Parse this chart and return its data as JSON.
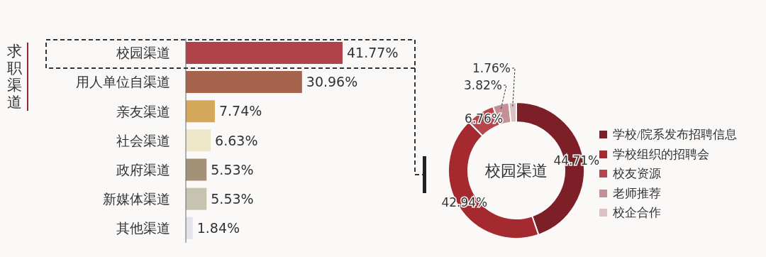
{
  "chart_data": [
    {
      "type": "bar",
      "orientation": "horizontal",
      "ylabel": "求职渠道",
      "categories": [
        "校园渠道",
        "用人单位自渠道",
        "亲友渠道",
        "社会渠道",
        "政府渠道",
        "新媒体渠道",
        "其他渠道"
      ],
      "values": [
        41.77,
        30.96,
        7.74,
        6.63,
        5.53,
        5.53,
        1.84
      ],
      "colors": [
        "#b0424a",
        "#a4634a",
        "#d4a85a",
        "#ede6c8",
        "#a39178",
        "#c6c4b0",
        "#e4e2ea"
      ],
      "value_labels": [
        "41.77%",
        "30.96%",
        "7.74%",
        "6.63%",
        "5.53%",
        "5.53%",
        "1.84%"
      ]
    },
    {
      "type": "donut",
      "title": "校园渠道",
      "categories": [
        "学校/院系发布招聘信息",
        "学校组织的招聘会",
        "校友资源",
        "老师推荐",
        "校企合作"
      ],
      "values": [
        44.71,
        42.94,
        6.76,
        3.82,
        1.76
      ],
      "colors": [
        "#7d1f27",
        "#a52a30",
        "#b8454c",
        "#c49096",
        "#dcc0c4"
      ],
      "value_labels": [
        "44.71%",
        "42.94%",
        "6.76%",
        "3.82%",
        "1.76%"
      ],
      "legend": "right"
    }
  ]
}
